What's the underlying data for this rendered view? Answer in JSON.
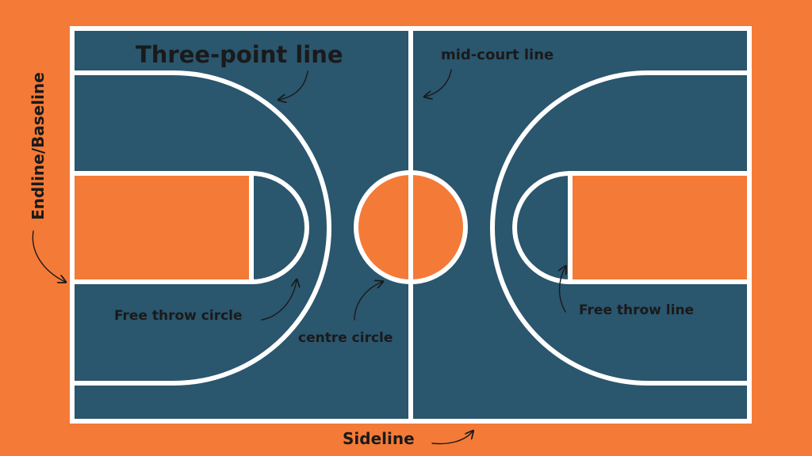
{
  "colors": {
    "background": "#F47A37",
    "court": "#2A566E",
    "paint": "#F47A37",
    "lines": "#FFFFFF",
    "text": "#1A1A1A"
  },
  "labels": {
    "three_point_line": "Three-point line",
    "mid_court_line": "mid-court line",
    "endline_baseline": "Endline/Baseline",
    "free_throw_circle": "Free throw circle",
    "centre_circle": "centre circle",
    "free_throw_line": "Free throw line",
    "sideline": "Sideline"
  }
}
